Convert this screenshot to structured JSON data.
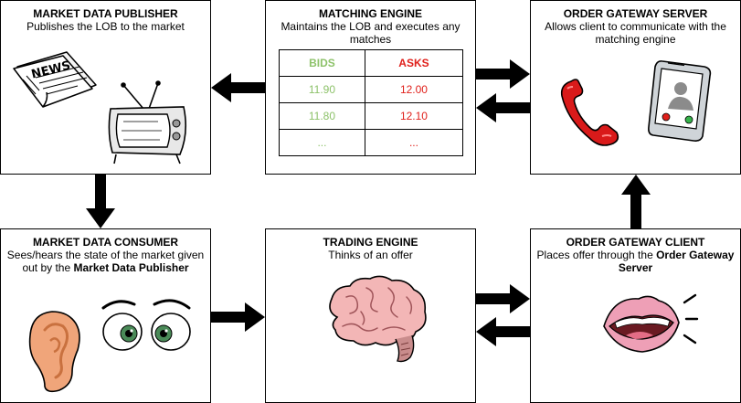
{
  "boxes": {
    "publisher": {
      "title": "MARKET DATA PUBLISHER",
      "desc": "Publishes the LOB to the market",
      "newspaper_text": "NEWS"
    },
    "matching": {
      "title": "MATCHING ENGINE",
      "desc": "Maintains the LOB and executes any matches"
    },
    "order_server": {
      "title": "ORDER GATEWAY SERVER",
      "desc": "Allows client to communicate with the matching engine"
    },
    "consumer": {
      "title": "MARKET DATA CONSUMER",
      "desc_prefix": "Sees/hears the state of the market given out by the ",
      "desc_bold": "Market Data Publisher"
    },
    "trading": {
      "title": "TRADING ENGINE",
      "desc": "Thinks of an offer"
    },
    "order_client": {
      "title": "ORDER GATEWAY CLIENT",
      "desc_prefix": "Places offer through the ",
      "desc_bold": "Order Gateway Server"
    }
  },
  "lob": {
    "headers": {
      "bids": "BIDS",
      "asks": "ASKS"
    },
    "rows": [
      {
        "bid": "11.90",
        "ask": "12.00"
      },
      {
        "bid": "11.80",
        "ask": "12.10"
      },
      {
        "bid": "...",
        "ask": "..."
      }
    ]
  },
  "colors": {
    "bids": "#8dc26a",
    "asks": "#e0201b"
  }
}
